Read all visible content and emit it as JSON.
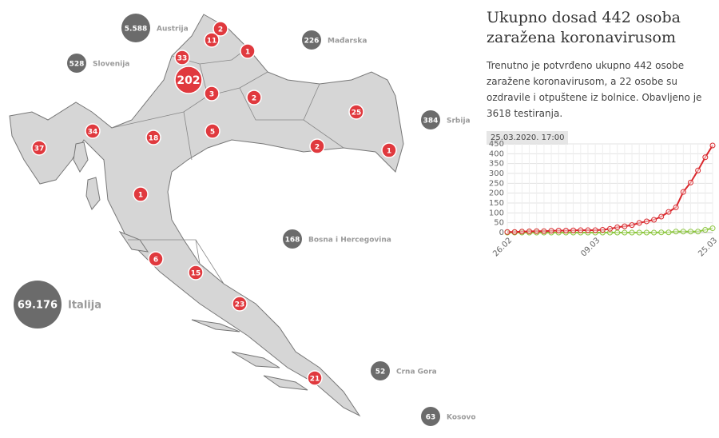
{
  "header": {
    "title": "Ukupno dosad 442 osoba zaražena koronavirusom",
    "description": "Trenutno je potvrđeno ukupno 442 osobe zaražene koronavirusom, a 22 osobe su ozdravile i otpuštene iz bolnice. Obavljeno je 3618 testiranja.",
    "timestamp": "25.03.2020. 17:00"
  },
  "counties": [
    2,
    11,
    1,
    33,
    202,
    3,
    2,
    25,
    34,
    18,
    5,
    2,
    1,
    37,
    1,
    6,
    15,
    23,
    21
  ],
  "countries": [
    {
      "name": "Austrija",
      "cases": {
        "value": 5588,
        "label": "5.588"
      }
    },
    {
      "name": "Slovenija",
      "cases": 528
    },
    {
      "name": "Mađarska",
      "cases": 226
    },
    {
      "name": "Srbija",
      "cases": 384
    },
    {
      "name": "Bosna i Hercegovina",
      "cases": 168
    },
    {
      "name": "Italija",
      "cases": {
        "value": 69176,
        "label": "69.176"
      }
    },
    {
      "name": "Crna Gora",
      "cases": 52
    },
    {
      "name": "Kosovo",
      "cases": 63
    }
  ],
  "chart_data": {
    "type": "line",
    "categories": [
      "26.02",
      null,
      null,
      null,
      null,
      null,
      null,
      null,
      null,
      null,
      null,
      null,
      "09.03",
      null,
      null,
      null,
      null,
      null,
      null,
      null,
      null,
      null,
      null,
      null,
      null,
      null,
      null,
      null,
      "25.03"
    ],
    "series": [
      {
        "color": "#8cc63f",
        "values": [
          0,
          0,
          0,
          0,
          0,
          0,
          0,
          0,
          0,
          0,
          0,
          0,
          0,
          0,
          0,
          0,
          0,
          0,
          0,
          0,
          0,
          1,
          1,
          5,
          5,
          5,
          5,
          14,
          22
        ]
      },
      {
        "color": "#d9262b",
        "values": [
          3,
          3,
          5,
          6,
          7,
          7,
          9,
          10,
          10,
          11,
          12,
          12,
          12,
          14,
          19,
          27,
          32,
          38,
          49,
          57,
          65,
          81,
          105,
          128,
          206,
          254,
          315,
          382,
          442
        ]
      }
    ],
    "ylim": [
      0,
      450
    ],
    "yticks": [
      0,
      50,
      100,
      150,
      200,
      250,
      300,
      350,
      400,
      450
    ],
    "grid": true
  }
}
